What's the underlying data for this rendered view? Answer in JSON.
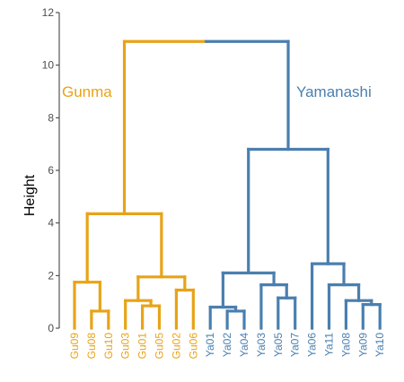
{
  "chart_data": {
    "type": "dendrogram",
    "ylabel": "Height",
    "ylim": [
      0,
      12
    ],
    "yticks": [
      0,
      2,
      4,
      6,
      8,
      10,
      12
    ],
    "grid": false,
    "colors": {
      "Gunma": "#E8A317",
      "Yamanashi": "#4A7FAF"
    },
    "clusters": [
      {
        "name": "Gunma",
        "color": "#E8A317"
      },
      {
        "name": "Yamanashi",
        "color": "#4A7FAF"
      }
    ],
    "leaves": [
      {
        "label": "Gu09",
        "cluster": "Gunma"
      },
      {
        "label": "Gu08",
        "cluster": "Gunma"
      },
      {
        "label": "Gu10",
        "cluster": "Gunma"
      },
      {
        "label": "Gu03",
        "cluster": "Gunma"
      },
      {
        "label": "Gu01",
        "cluster": "Gunma"
      },
      {
        "label": "Gu05",
        "cluster": "Gunma"
      },
      {
        "label": "Gu02",
        "cluster": "Gunma"
      },
      {
        "label": "Gu06",
        "cluster": "Gunma"
      },
      {
        "label": "Ya01",
        "cluster": "Yamanashi"
      },
      {
        "label": "Ya02",
        "cluster": "Yamanashi"
      },
      {
        "label": "Ya04",
        "cluster": "Yamanashi"
      },
      {
        "label": "Ya03",
        "cluster": "Yamanashi"
      },
      {
        "label": "Ya05",
        "cluster": "Yamanashi"
      },
      {
        "label": "Ya07",
        "cluster": "Yamanashi"
      },
      {
        "label": "Ya06",
        "cluster": "Yamanashi"
      },
      {
        "label": "Ya11",
        "cluster": "Yamanashi"
      },
      {
        "label": "Ya08",
        "cluster": "Yamanashi"
      },
      {
        "label": "Ya09",
        "cluster": "Yamanashi"
      },
      {
        "label": "Ya10",
        "cluster": "Yamanashi"
      }
    ],
    "merges": [
      {
        "id": "A",
        "children": [
          "Gu08",
          "Gu10"
        ],
        "height": 0.65,
        "cluster": "Gunma"
      },
      {
        "id": "B",
        "children": [
          "Gu09",
          "A"
        ],
        "height": 1.75,
        "cluster": "Gunma"
      },
      {
        "id": "C",
        "children": [
          "Gu01",
          "Gu05"
        ],
        "height": 0.85,
        "cluster": "Gunma"
      },
      {
        "id": "D",
        "children": [
          "Gu03",
          "C"
        ],
        "height": 1.05,
        "cluster": "Gunma"
      },
      {
        "id": "E",
        "children": [
          "Gu02",
          "Gu06"
        ],
        "height": 1.45,
        "cluster": "Gunma"
      },
      {
        "id": "F",
        "children": [
          "D",
          "E"
        ],
        "height": 1.95,
        "cluster": "Gunma"
      },
      {
        "id": "G",
        "children": [
          "B",
          "F"
        ],
        "height": 4.35,
        "cluster": "Gunma"
      },
      {
        "id": "H",
        "children": [
          "Ya02",
          "Ya04"
        ],
        "height": 0.65,
        "cluster": "Yamanashi"
      },
      {
        "id": "I",
        "children": [
          "Ya01",
          "H"
        ],
        "height": 0.8,
        "cluster": "Yamanashi"
      },
      {
        "id": "J",
        "children": [
          "Ya05",
          "Ya07"
        ],
        "height": 1.15,
        "cluster": "Yamanashi"
      },
      {
        "id": "K",
        "children": [
          "Ya03",
          "J"
        ],
        "height": 1.65,
        "cluster": "Yamanashi"
      },
      {
        "id": "L",
        "children": [
          "I",
          "K"
        ],
        "height": 2.1,
        "cluster": "Yamanashi"
      },
      {
        "id": "M",
        "children": [
          "Ya09",
          "Ya10"
        ],
        "height": 0.9,
        "cluster": "Yamanashi"
      },
      {
        "id": "N",
        "children": [
          "Ya08",
          "M"
        ],
        "height": 1.05,
        "cluster": "Yamanashi"
      },
      {
        "id": "O",
        "children": [
          "Ya11",
          "N"
        ],
        "height": 1.65,
        "cluster": "Yamanashi"
      },
      {
        "id": "P",
        "children": [
          "Ya06",
          "O"
        ],
        "height": 2.45,
        "cluster": "Yamanashi"
      },
      {
        "id": "Q",
        "children": [
          "L",
          "P"
        ],
        "height": 6.8,
        "cluster": "Yamanashi"
      },
      {
        "id": "R",
        "children": [
          "G",
          "Q"
        ],
        "height": 10.9,
        "cluster": "split"
      }
    ]
  }
}
